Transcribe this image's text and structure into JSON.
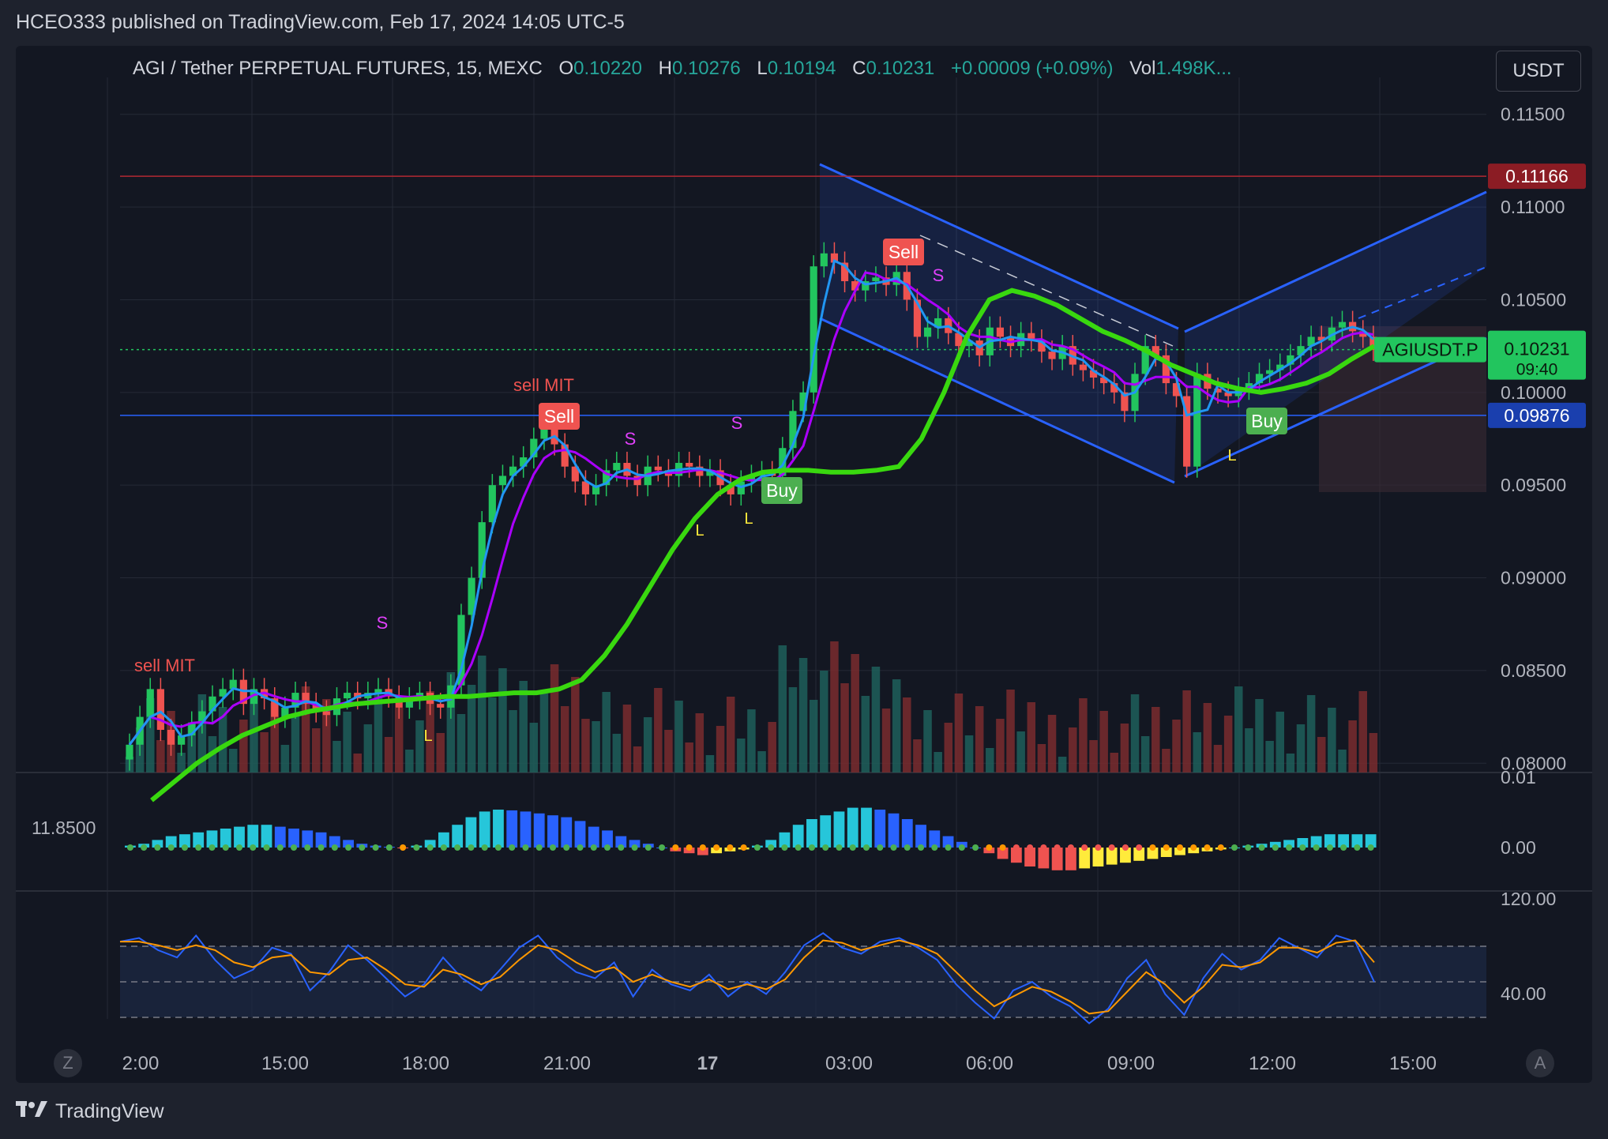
{
  "header": {
    "published": "HCEO333 published on TradingView.com, Feb 17, 2024 14:05 UTC-5"
  },
  "legend": {
    "symbol": "AGI / Tether PERPETUAL FUTURES, 15, MEXC",
    "o_label": "O",
    "o": "0.10220",
    "h_label": "H",
    "h": "0.10276",
    "l_label": "L",
    "l": "0.10194",
    "c_label": "C",
    "c": "0.10231",
    "change": "+0.00009 (+0.09%)",
    "vol_label": "Vol",
    "vol": "1.498K..."
  },
  "toolbar": {
    "currency": "USDT",
    "z_button": "Z",
    "a_button": "A"
  },
  "footer": {
    "brand": "TradingView"
  },
  "colors": {
    "bg": "#131722",
    "up": "#22c55e",
    "down": "#ef5350",
    "channel": "#2962ff",
    "ema_fast": "#2196f3",
    "ema_mid": "#ab00ff",
    "ema_slow": "#39d80f"
  },
  "price_labels": {
    "resistance": "0.11166",
    "support": "0.09876",
    "ticker": "AGIUSDT.P",
    "last": "0.10231",
    "countdown": "09:40"
  },
  "signals": {
    "sell_mit": "sell MIT",
    "sell": "Sell",
    "buy": "Buy",
    "s": "S",
    "l": "L"
  },
  "osc_axis_label": "11.8500",
  "chart_data": [
    {
      "type": "candlestick",
      "title": "AGI / Tether PERPETUAL FUTURES, 15, MEXC",
      "x_ticks": [
        "2:00",
        "15:00",
        "18:00",
        "21:00",
        "17",
        "03:00",
        "06:00",
        "09:00",
        "12:00",
        "15:00"
      ],
      "y_ticks": [
        "0.11500",
        "0.11000",
        "0.10500",
        "0.10000",
        "0.09500",
        "0.09000",
        "0.08500",
        "0.08000"
      ],
      "ylim": [
        0.0795,
        0.1155
      ],
      "horizontal_lines": [
        0.11166,
        0.09876
      ],
      "close_series": [
        0.081,
        0.0825,
        0.084,
        0.0818,
        0.081,
        0.0815,
        0.0822,
        0.0828,
        0.0836,
        0.084,
        0.0845,
        0.0832,
        0.084,
        0.0835,
        0.0825,
        0.083,
        0.0838,
        0.0832,
        0.0828,
        0.0826,
        0.0835,
        0.0838,
        0.0835,
        0.0838,
        0.084,
        0.0836,
        0.083,
        0.0835,
        0.0838,
        0.0832,
        0.083,
        0.0842,
        0.088,
        0.09,
        0.093,
        0.095,
        0.0955,
        0.096,
        0.0965,
        0.0975,
        0.0982,
        0.0972,
        0.096,
        0.0952,
        0.0945,
        0.095,
        0.0958,
        0.0962,
        0.0955,
        0.095,
        0.096,
        0.0958,
        0.0955,
        0.0962,
        0.096,
        0.0955,
        0.0958,
        0.095,
        0.0945,
        0.0952,
        0.0955,
        0.0957,
        0.0955,
        0.097,
        0.099,
        0.1,
        0.1068,
        0.1075,
        0.107,
        0.106,
        0.1055,
        0.106,
        0.1062,
        0.1058,
        0.1065,
        0.105,
        0.103,
        0.1035,
        0.104,
        0.1032,
        0.1025,
        0.1028,
        0.102,
        0.1035,
        0.103,
        0.1025,
        0.1032,
        0.1028,
        0.1022,
        0.1018,
        0.1025,
        0.1015,
        0.1012,
        0.1008,
        0.1005,
        0.1,
        0.099,
        0.101,
        0.1025,
        0.102,
        0.1005,
        0.0998,
        0.096,
        0.101,
        0.1002,
        0.1,
        0.0998,
        0.1002,
        0.1005,
        0.101,
        0.1012,
        0.1015,
        0.102,
        0.1025,
        0.103,
        0.1028,
        0.1035,
        0.1038,
        0.1033,
        0.103,
        0.1023
      ],
      "ema_slow": [
        0.078,
        0.079,
        0.08,
        0.0808,
        0.0815,
        0.082,
        0.0825,
        0.0828,
        0.083,
        0.0832,
        0.0833,
        0.0834,
        0.0835,
        0.0836,
        0.0836,
        0.0837,
        0.0838,
        0.0838,
        0.084,
        0.0845,
        0.0858,
        0.0875,
        0.0895,
        0.0915,
        0.0932,
        0.0945,
        0.0953,
        0.0957,
        0.0958,
        0.0958,
        0.0957,
        0.0957,
        0.0958,
        0.096,
        0.0975,
        0.1,
        0.103,
        0.105,
        0.1055,
        0.1052,
        0.1047,
        0.104,
        0.1033,
        0.1028,
        0.1022,
        0.1015,
        0.101,
        0.1005,
        0.1002,
        0.1,
        0.1002,
        0.1005,
        0.101,
        0.1018,
        0.1025
      ],
      "series": [
        {
          "name": "",
          "type": "volume"
        },
        {
          "name": "",
          "type": "histogram",
          "y_ticks": [
            "0.01",
            "0.00"
          ],
          "values": [
            0.0005,
            0.001,
            0.002,
            0.003,
            0.0035,
            0.004,
            0.0045,
            0.005,
            0.0055,
            0.006,
            0.006,
            0.0055,
            0.005,
            0.0045,
            0.004,
            0.003,
            0.002,
            0.001,
            0.0005,
            0.0002,
            -0.0001,
            0.0005,
            0.002,
            0.004,
            0.006,
            0.008,
            0.0095,
            0.01,
            0.0098,
            0.0095,
            0.009,
            0.0085,
            0.008,
            0.007,
            0.0055,
            0.0045,
            0.003,
            0.002,
            0.001,
            0.0,
            -0.001,
            -0.0015,
            -0.002,
            -0.0015,
            -0.001,
            -0.0005,
            0.0005,
            0.002,
            0.004,
            0.006,
            0.0075,
            0.0085,
            0.0095,
            0.0105,
            0.0105,
            0.01,
            0.009,
            0.0075,
            0.006,
            0.0045,
            0.003,
            0.0015,
            0.0,
            -0.0015,
            -0.003,
            -0.004,
            -0.005,
            -0.0055,
            -0.006,
            -0.006,
            -0.0055,
            -0.005,
            -0.0045,
            -0.004,
            -0.0035,
            -0.003,
            -0.0025,
            -0.002,
            -0.0015,
            -0.001,
            -0.0005,
            0.0,
            0.0005,
            0.001,
            0.0015,
            0.002,
            0.0025,
            0.003,
            0.0035,
            0.0035,
            0.0035,
            0.0035
          ]
        },
        {
          "name": "",
          "type": "oscillator",
          "y_ticks": [
            "120.00",
            "40.00"
          ],
          "values_fast": [
            85,
            88,
            78,
            72,
            90,
            70,
            55,
            62,
            80,
            75,
            45,
            60,
            82,
            70,
            55,
            40,
            50,
            72,
            55,
            45,
            62,
            80,
            90,
            72,
            60,
            55,
            68,
            40,
            62,
            50,
            45,
            58,
            40,
            52,
            42,
            60,
            82,
            92,
            80,
            75,
            85,
            88,
            80,
            70,
            50,
            35,
            22,
            45,
            52,
            40,
            32,
            18,
            30,
            55,
            70,
            42,
            25,
            55,
            75,
            62,
            70,
            88,
            80,
            72,
            90,
            85,
            52
          ]
        },
        {
          "name": "",
          "type": "oscillator",
          "values_slow": [
            85,
            85,
            82,
            78,
            82,
            78,
            68,
            64,
            72,
            74,
            60,
            58,
            70,
            72,
            62,
            50,
            48,
            62,
            58,
            50,
            56,
            70,
            82,
            78,
            68,
            60,
            64,
            52,
            58,
            52,
            48,
            54,
            46,
            50,
            46,
            54,
            72,
            86,
            84,
            78,
            82,
            86,
            82,
            75,
            60,
            45,
            32,
            40,
            48,
            44,
            36,
            26,
            28,
            44,
            60,
            50,
            35,
            48,
            66,
            64,
            68,
            80,
            80,
            76,
            84,
            86,
            68
          ]
        }
      ]
    }
  ]
}
